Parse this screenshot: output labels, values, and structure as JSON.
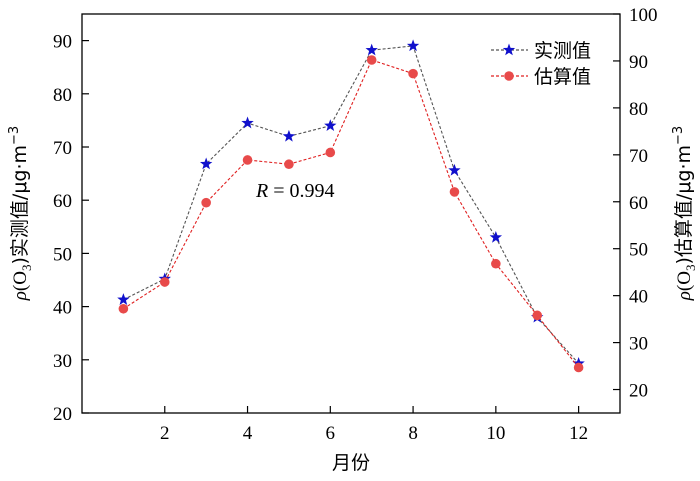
{
  "chart_data": {
    "type": "line",
    "x": [
      1,
      2,
      3,
      4,
      5,
      6,
      7,
      8,
      9,
      10,
      11,
      12
    ],
    "xlabel": "月份",
    "xticks": [
      2,
      4,
      6,
      8,
      10,
      12
    ],
    "xlim": [
      0,
      13
    ],
    "ylabel_left": "ρ(O3)实测值/μg·m−3",
    "ylabel_right": "ρ(O3)估算值/μg·m−3",
    "ylim_left": [
      20,
      95
    ],
    "yticks_left": [
      20,
      30,
      40,
      50,
      60,
      70,
      80,
      90
    ],
    "ylim_right": [
      15,
      100
    ],
    "yticks_right": [
      20,
      30,
      40,
      50,
      60,
      70,
      80,
      90,
      100
    ],
    "series": [
      {
        "name": "实测值",
        "axis": "left",
        "marker": "star",
        "color": "#1010cc",
        "line_color": "#555555",
        "values": [
          41.3,
          45.2,
          66.8,
          74.5,
          72.0,
          74.0,
          88.2,
          89.0,
          65.6,
          53.0,
          38.0,
          29.3
        ]
      },
      {
        "name": "估算值",
        "axis": "right",
        "marker": "circle",
        "color": "#e84a4a",
        "line_color": "#e02020",
        "values": [
          37.2,
          42.9,
          59.8,
          68.9,
          68.0,
          70.5,
          90.2,
          87.3,
          62.1,
          46.8,
          35.8,
          24.7
        ]
      }
    ],
    "annotation": {
      "italic": "R",
      "rest": " = 0.994"
    },
    "legend_position": "top-right",
    "grid": false
  }
}
